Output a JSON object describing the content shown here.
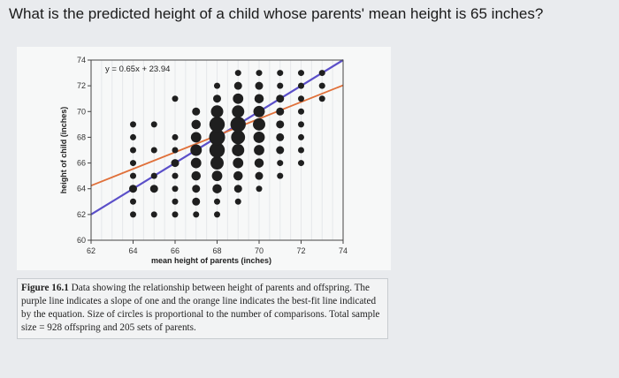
{
  "question": "What is the predicted height of a child whose parents' mean height is 65 inches?",
  "figure": {
    "caption_label": "Figure 16.1",
    "caption_text": " Data showing the relationship between height of parents and offspring. The purple line indicates a slope of one and the orange line indicates the best-fit line indicated by the equation. Size of circles is proportional to the number of comparisons. Total sample size = 928 offspring and 205 sets of parents."
  },
  "colors": {
    "purple_line": "#5b4fc9",
    "orange_line": "#e0703a",
    "dots": "#1f1f1f"
  },
  "chart_data": {
    "type": "scatter",
    "xlabel": "mean height of parents (inches)",
    "ylabel": "height of child (inches)",
    "xlim": [
      62,
      74
    ],
    "ylim": [
      60,
      74
    ],
    "x_ticks": [
      62,
      64,
      66,
      68,
      70,
      72,
      74
    ],
    "y_ticks": [
      60,
      62,
      64,
      66,
      68,
      70,
      72,
      74
    ],
    "equation": "y = 0.65x + 23.94",
    "lines": [
      {
        "name": "slope of one",
        "color": "purple",
        "slope": 1,
        "intercept": 0
      },
      {
        "name": "best-fit",
        "color": "orange",
        "slope": 0.65,
        "intercept": 23.94
      }
    ],
    "points": [
      {
        "x": 64,
        "y": 62,
        "n": 1
      },
      {
        "x": 64,
        "y": 63,
        "n": 1
      },
      {
        "x": 64,
        "y": 64,
        "n": 2
      },
      {
        "x": 64,
        "y": 65,
        "n": 1
      },
      {
        "x": 64,
        "y": 66,
        "n": 1
      },
      {
        "x": 64,
        "y": 67,
        "n": 1
      },
      {
        "x": 64,
        "y": 68,
        "n": 1
      },
      {
        "x": 64,
        "y": 69,
        "n": 1
      },
      {
        "x": 65,
        "y": 62,
        "n": 1
      },
      {
        "x": 65,
        "y": 64,
        "n": 2
      },
      {
        "x": 65,
        "y": 65,
        "n": 1
      },
      {
        "x": 65,
        "y": 67,
        "n": 1
      },
      {
        "x": 65,
        "y": 69,
        "n": 1
      },
      {
        "x": 66,
        "y": 62,
        "n": 1
      },
      {
        "x": 66,
        "y": 63,
        "n": 1
      },
      {
        "x": 66,
        "y": 64,
        "n": 1
      },
      {
        "x": 66,
        "y": 65,
        "n": 1
      },
      {
        "x": 66,
        "y": 66,
        "n": 2
      },
      {
        "x": 66,
        "y": 67,
        "n": 1
      },
      {
        "x": 66,
        "y": 68,
        "n": 1
      },
      {
        "x": 66,
        "y": 71,
        "n": 1
      },
      {
        "x": 67,
        "y": 62,
        "n": 1
      },
      {
        "x": 67,
        "y": 63,
        "n": 2
      },
      {
        "x": 67,
        "y": 64,
        "n": 2
      },
      {
        "x": 67,
        "y": 65,
        "n": 3
      },
      {
        "x": 67,
        "y": 66,
        "n": 4
      },
      {
        "x": 67,
        "y": 67,
        "n": 5
      },
      {
        "x": 67,
        "y": 68,
        "n": 4
      },
      {
        "x": 67,
        "y": 69,
        "n": 3
      },
      {
        "x": 67,
        "y": 70,
        "n": 2
      },
      {
        "x": 68,
        "y": 62,
        "n": 1
      },
      {
        "x": 68,
        "y": 63,
        "n": 1
      },
      {
        "x": 68,
        "y": 64,
        "n": 3
      },
      {
        "x": 68,
        "y": 65,
        "n": 4
      },
      {
        "x": 68,
        "y": 66,
        "n": 7
      },
      {
        "x": 68,
        "y": 67,
        "n": 10
      },
      {
        "x": 68,
        "y": 68,
        "n": 11
      },
      {
        "x": 68,
        "y": 69,
        "n": 10
      },
      {
        "x": 68,
        "y": 70,
        "n": 6
      },
      {
        "x": 68,
        "y": 71,
        "n": 2
      },
      {
        "x": 68,
        "y": 72,
        "n": 1
      },
      {
        "x": 69,
        "y": 63,
        "n": 1
      },
      {
        "x": 69,
        "y": 64,
        "n": 2
      },
      {
        "x": 69,
        "y": 65,
        "n": 3
      },
      {
        "x": 69,
        "y": 66,
        "n": 4
      },
      {
        "x": 69,
        "y": 67,
        "n": 6
      },
      {
        "x": 69,
        "y": 68,
        "n": 8
      },
      {
        "x": 69,
        "y": 69,
        "n": 10
      },
      {
        "x": 69,
        "y": 70,
        "n": 6
      },
      {
        "x": 69,
        "y": 71,
        "n": 4
      },
      {
        "x": 69,
        "y": 72,
        "n": 2
      },
      {
        "x": 69,
        "y": 73,
        "n": 1
      },
      {
        "x": 70,
        "y": 64,
        "n": 1
      },
      {
        "x": 70,
        "y": 65,
        "n": 2
      },
      {
        "x": 70,
        "y": 66,
        "n": 3
      },
      {
        "x": 70,
        "y": 67,
        "n": 4
      },
      {
        "x": 70,
        "y": 68,
        "n": 5
      },
      {
        "x": 70,
        "y": 69,
        "n": 6
      },
      {
        "x": 70,
        "y": 70,
        "n": 5
      },
      {
        "x": 70,
        "y": 71,
        "n": 3
      },
      {
        "x": 70,
        "y": 72,
        "n": 2
      },
      {
        "x": 70,
        "y": 73,
        "n": 1
      },
      {
        "x": 71,
        "y": 65,
        "n": 1
      },
      {
        "x": 71,
        "y": 66,
        "n": 1
      },
      {
        "x": 71,
        "y": 67,
        "n": 2
      },
      {
        "x": 71,
        "y": 68,
        "n": 2
      },
      {
        "x": 71,
        "y": 69,
        "n": 2
      },
      {
        "x": 71,
        "y": 70,
        "n": 2
      },
      {
        "x": 71,
        "y": 71,
        "n": 2
      },
      {
        "x": 71,
        "y": 72,
        "n": 1
      },
      {
        "x": 71,
        "y": 73,
        "n": 1
      },
      {
        "x": 72,
        "y": 66,
        "n": 1
      },
      {
        "x": 72,
        "y": 67,
        "n": 1
      },
      {
        "x": 72,
        "y": 68,
        "n": 1
      },
      {
        "x": 72,
        "y": 69,
        "n": 1
      },
      {
        "x": 72,
        "y": 70,
        "n": 1
      },
      {
        "x": 72,
        "y": 71,
        "n": 1
      },
      {
        "x": 72,
        "y": 72,
        "n": 1
      },
      {
        "x": 72,
        "y": 73,
        "n": 1
      },
      {
        "x": 73,
        "y": 71,
        "n": 1
      },
      {
        "x": 73,
        "y": 72,
        "n": 1
      },
      {
        "x": 73,
        "y": 73,
        "n": 1
      }
    ]
  }
}
